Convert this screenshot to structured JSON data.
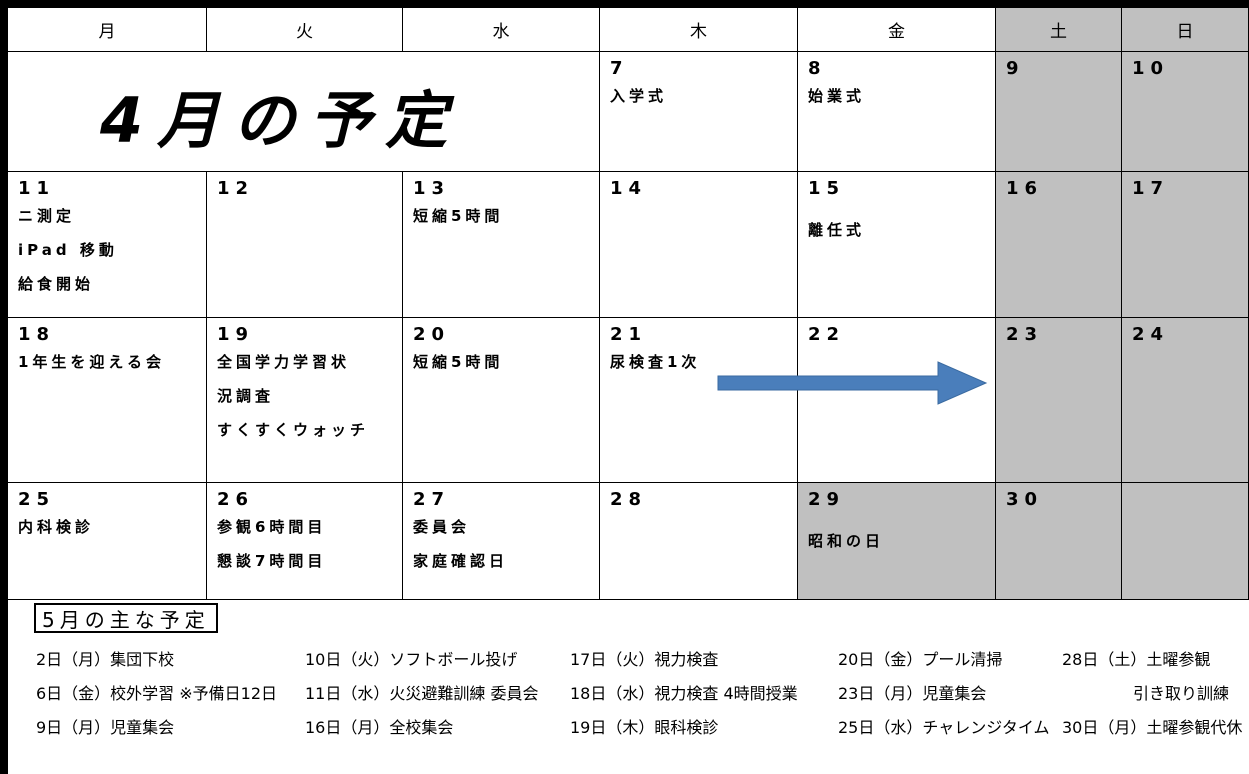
{
  "header": {
    "days": [
      "月",
      "火",
      "水",
      "木",
      "金",
      "土",
      "日"
    ]
  },
  "title": "4月の予定",
  "weeks": [
    {
      "cells": [
        {
          "date": "7",
          "events": [
            "入学式"
          ]
        },
        {
          "date": "8",
          "events": [
            "始業式"
          ]
        },
        {
          "date": "9",
          "events": []
        },
        {
          "date": "10",
          "events": []
        }
      ]
    },
    {
      "cells": [
        {
          "date": "11",
          "events": [
            "ニ測定",
            "iPad 移動",
            "給食開始"
          ]
        },
        {
          "date": "12",
          "events": []
        },
        {
          "date": "13",
          "events": [
            "短縮5時間"
          ]
        },
        {
          "date": "14",
          "events": []
        },
        {
          "date": "15",
          "events": [
            "離任式"
          ]
        },
        {
          "date": "16",
          "events": []
        },
        {
          "date": "17",
          "events": []
        }
      ]
    },
    {
      "cells": [
        {
          "date": "18",
          "events": [
            "1年生を迎える会"
          ]
        },
        {
          "date": "19",
          "events": [
            "全国学力学習状",
            "況調査",
            "すくすくウォッチ"
          ]
        },
        {
          "date": "20",
          "events": [
            "短縮5時間"
          ]
        },
        {
          "date": "21",
          "events": [
            "尿検査1次"
          ]
        },
        {
          "date": "22",
          "events": []
        },
        {
          "date": "23",
          "events": []
        },
        {
          "date": "24",
          "events": []
        }
      ]
    },
    {
      "cells": [
        {
          "date": "25",
          "events": [
            "内科検診"
          ]
        },
        {
          "date": "26",
          "events": [
            "参観6時間目",
            "懇談7時間目"
          ]
        },
        {
          "date": "27",
          "events": [
            "委員会",
            "家庭確認日"
          ]
        },
        {
          "date": "28",
          "events": []
        },
        {
          "date": "29",
          "events": [
            "昭和の日"
          ]
        },
        {
          "date": "30",
          "events": []
        }
      ]
    }
  ],
  "may": {
    "heading": "5月の主な予定",
    "columns": [
      [
        "2日（月）集団下校",
        "6日（金）校外学習 ※予備日12日",
        "9日（月）児童集会"
      ],
      [
        "10日（火）ソフトボール投げ",
        "11日（水）火災避難訓練 委員会",
        "16日（月）全校集会"
      ],
      [
        "17日（火）視力検査",
        "18日（水）視力検査 4時間授業",
        "19日（木）眼科検診"
      ],
      [
        "20日（金）プール清掃",
        "23日（月）児童集会",
        "25日（水）チャレンジタイム"
      ],
      [
        "28日（土）土曜参観",
        "引き取り訓練",
        "30日（月）土曜参観代休"
      ]
    ]
  }
}
